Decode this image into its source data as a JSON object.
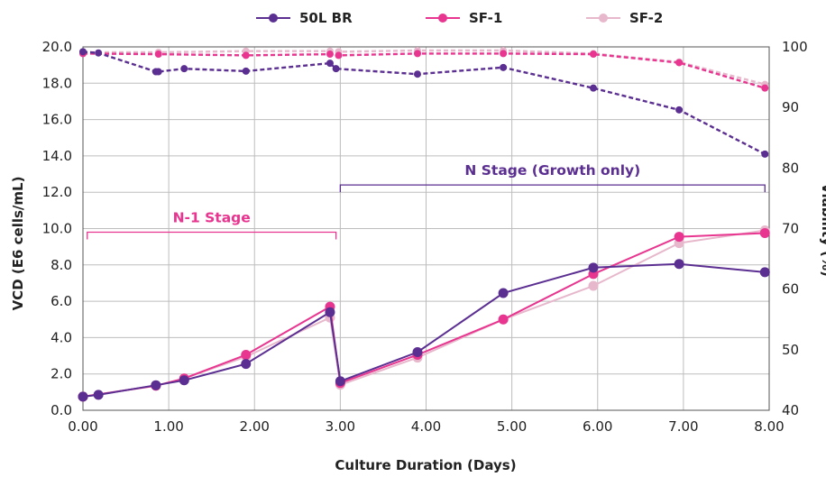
{
  "chart_data": {
    "type": "line",
    "title": "",
    "xlabel": "Culture Duration (Days)",
    "ylabel": "VCD (E6 cells/mL)",
    "y2label": "Viability (%)",
    "xlim": [
      0,
      8
    ],
    "ylim": [
      0,
      20
    ],
    "y2lim": [
      40,
      100
    ],
    "grid": true,
    "legend_position": "top-center",
    "x_ticks": [
      "0.00",
      "1.00",
      "2.00",
      "3.00",
      "4.00",
      "5.00",
      "6.00",
      "7.00",
      "8.00"
    ],
    "y_ticks": [
      "0.0",
      "2.0",
      "4.0",
      "6.0",
      "8.0",
      "10.0",
      "12.0",
      "14.0",
      "16.0",
      "18.0",
      "20.0"
    ],
    "y2_ticks": [
      "40",
      "50",
      "60",
      "70",
      "80",
      "90",
      "100"
    ],
    "series": [
      {
        "name": "50L BR",
        "color": "#5b2e91",
        "vcd": [
          [
            0.0,
            0.75
          ],
          [
            0.18,
            0.85
          ],
          [
            0.85,
            1.38
          ],
          [
            1.18,
            1.65
          ],
          [
            1.9,
            2.55
          ],
          [
            2.88,
            5.4
          ],
          [
            3.0,
            1.6
          ],
          [
            3.9,
            3.2
          ],
          [
            4.9,
            6.45
          ],
          [
            5.95,
            7.85
          ],
          [
            6.95,
            8.05
          ],
          [
            7.95,
            7.6
          ]
        ],
        "viability": [
          [
            0.0,
            99.2
          ],
          [
            0.18,
            99.0
          ],
          [
            0.85,
            95.9
          ],
          [
            0.88,
            95.9
          ],
          [
            1.18,
            96.4
          ],
          [
            1.9,
            96.0
          ],
          [
            2.88,
            97.3
          ],
          [
            2.95,
            96.4
          ],
          [
            3.9,
            95.5
          ],
          [
            4.9,
            96.6
          ],
          [
            5.95,
            93.2
          ],
          [
            6.95,
            89.6
          ],
          [
            7.95,
            82.3
          ]
        ]
      },
      {
        "name": "SF-1",
        "color": "#e8358f",
        "vcd": [
          [
            0.0,
            0.75
          ],
          [
            0.85,
            1.35
          ],
          [
            1.18,
            1.75
          ],
          [
            1.9,
            3.05
          ],
          [
            2.88,
            5.7
          ],
          [
            3.0,
            1.5
          ],
          [
            3.9,
            3.05
          ],
          [
            4.9,
            5.0
          ],
          [
            5.95,
            7.5
          ],
          [
            6.95,
            9.55
          ],
          [
            7.95,
            9.75
          ]
        ],
        "viability": [
          [
            0.0,
            98.9
          ],
          [
            0.88,
            98.8
          ],
          [
            1.9,
            98.6
          ],
          [
            2.88,
            98.8
          ],
          [
            2.98,
            98.6
          ],
          [
            3.9,
            98.9
          ],
          [
            4.9,
            98.9
          ],
          [
            5.95,
            98.8
          ],
          [
            6.95,
            97.4
          ],
          [
            7.95,
            93.2
          ]
        ]
      },
      {
        "name": "SF-2",
        "color": "#e7b7cc",
        "vcd": [
          [
            0.0,
            0.75
          ],
          [
            0.85,
            1.35
          ],
          [
            1.18,
            1.75
          ],
          [
            1.9,
            2.95
          ],
          [
            2.88,
            5.1
          ],
          [
            3.0,
            1.4
          ],
          [
            3.9,
            2.9
          ],
          [
            4.9,
            5.0
          ],
          [
            5.95,
            6.85
          ],
          [
            6.95,
            9.2
          ],
          [
            7.95,
            9.9
          ]
        ],
        "viability": [
          [
            0.0,
            99.1
          ],
          [
            0.88,
            99.1
          ],
          [
            1.9,
            99.3
          ],
          [
            2.88,
            99.3
          ],
          [
            2.98,
            99.2
          ],
          [
            3.9,
            99.4
          ],
          [
            4.9,
            99.4
          ],
          [
            5.95,
            98.9
          ],
          [
            6.95,
            97.5
          ],
          [
            7.95,
            93.8
          ]
        ]
      }
    ],
    "annotations": [
      {
        "text": "N-1 Stage",
        "color": "#e8358f",
        "x_start": 0.05,
        "x_end": 2.95,
        "y": 9.8
      },
      {
        "text": "N Stage (Growth only)",
        "color": "#5b2e91",
        "x_start": 3.0,
        "x_end": 7.95,
        "y": 12.4
      }
    ]
  }
}
